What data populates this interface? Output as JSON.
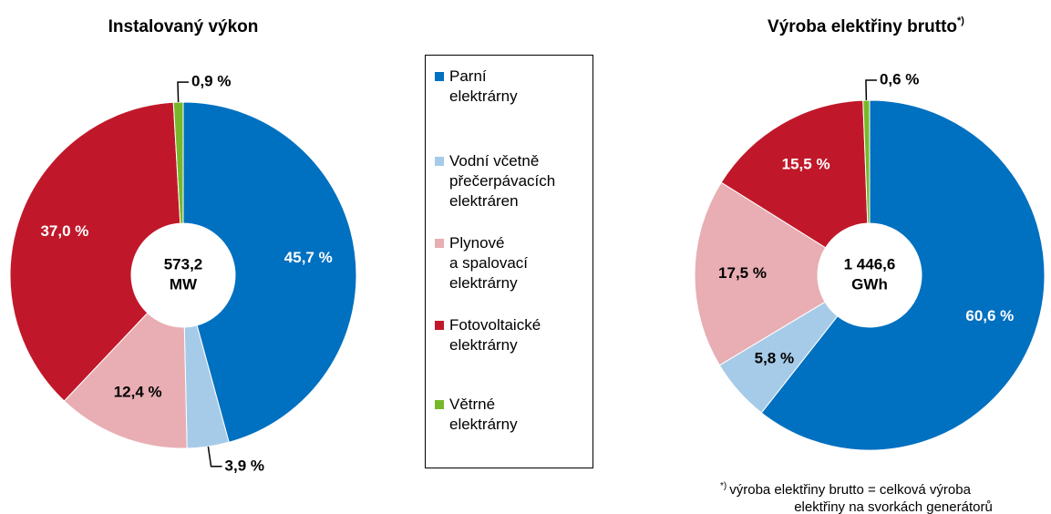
{
  "chart_data": [
    {
      "type": "pie",
      "title": "Instalovaný výkon",
      "categories": [
        "Parní\nelektrárny",
        "Vodní včetně\npřečerpávacích\nelektráren",
        "Plynové\na spalovací\nelektrárny",
        "Fotovoltaické\nelektrárny",
        "Větrné\nelektrárny"
      ],
      "colors": [
        "#0070c0",
        "#a6cbe8",
        "#e8aeb3",
        "#c0182a",
        "#77b82a"
      ],
      "values": [
        45.7,
        3.9,
        12.4,
        37.0,
        0.9
      ],
      "value_labels": [
        "45,7 %",
        "3,9 %",
        "12,4 %",
        "37,0 %",
        "0,9 %"
      ],
      "center_label": [
        "573,2",
        "MW"
      ]
    },
    {
      "type": "pie",
      "title": "Výroba elektřiny brutto",
      "title_note": "*)",
      "values": [
        60.6,
        5.8,
        17.5,
        15.5,
        0.6
      ],
      "value_labels": [
        "60,6 %",
        "5,8 %",
        "17,5 %",
        "15,5 %",
        "0,6 %"
      ],
      "center_label": [
        "1 446,6",
        "GWh"
      ],
      "footnote_mark": "*)",
      "footnote": [
        "výroba elektřiny brutto = celková výroba",
        "elektřiny na svorkách generátorů"
      ]
    }
  ]
}
